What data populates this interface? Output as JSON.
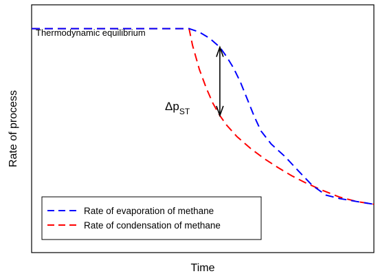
{
  "chart_data": {
    "type": "line",
    "title": "",
    "xlabel": "Time",
    "ylabel": "Rate of process",
    "xlim": [
      0,
      100
    ],
    "ylim": [
      0,
      100
    ],
    "ticks": "none",
    "grid": false,
    "legend_position": "bottom-left",
    "series": [
      {
        "name": "Rate of evaporation of methane",
        "color": "#0000ff",
        "style": "dashed",
        "x": [
          0,
          46,
          49,
          52,
          55,
          57,
          59,
          61,
          63,
          65,
          67,
          70,
          74,
          78,
          82,
          86,
          90,
          95,
          100
        ],
        "y": [
          90.4,
          90.4,
          89.0,
          86.5,
          82.9,
          79.0,
          74.5,
          68.8,
          62.0,
          55.1,
          49.1,
          43.8,
          38.8,
          32.9,
          27.1,
          23.2,
          21.8,
          20.6,
          19.5
        ]
      },
      {
        "name": "Rate of condensation of methane",
        "color": "#ff0000",
        "style": "dashed",
        "x": [
          0,
          46,
          47,
          49,
          51,
          53,
          55,
          57,
          60,
          64,
          68,
          72,
          76,
          80,
          85,
          90,
          95,
          100
        ],
        "y": [
          90.4,
          90.4,
          83.7,
          74.0,
          66.5,
          60.2,
          55.3,
          51.4,
          46.8,
          42.0,
          37.9,
          34.3,
          31.0,
          28.2,
          25.1,
          22.4,
          20.6,
          19.5
        ]
      }
    ],
    "annotations": [
      {
        "text": "Thermodynamic equilibrium"
      },
      {
        "text_main": "Δp",
        "text_sub": "ST",
        "arrow": "double-headed",
        "x": 55,
        "y_top": 82.9,
        "y_bottom": 55.3
      }
    ]
  }
}
